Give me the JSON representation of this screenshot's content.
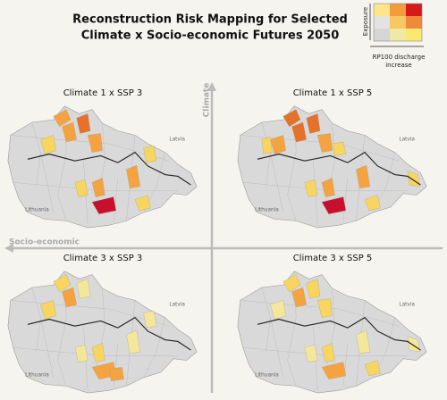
{
  "title": [
    "Reconstruction Risk Mapping for Selected",
    "Climate x Socio-economic Futures 2050"
  ],
  "legend": {
    "y_label": "Exposure",
    "x_label": [
      "RP100 discharge",
      "increase"
    ]
  },
  "axes": {
    "vertical": "Climate",
    "horizontal": "Socio-economic"
  },
  "panels": [
    {
      "title": "Climate 1 x SSP 3",
      "labels": [
        "Latvia",
        "Lithuania"
      ]
    },
    {
      "title": "Climate 1 x SSP 5",
      "labels": [
        "Latvia",
        "Lithuania"
      ]
    },
    {
      "title": "Climate 3 x SSP 3",
      "labels": [
        "Latvia",
        "Lithuania"
      ]
    },
    {
      "title": "Climate 3 x SSP 5",
      "labels": [
        "Latvia",
        "Lithuania"
      ]
    }
  ]
}
